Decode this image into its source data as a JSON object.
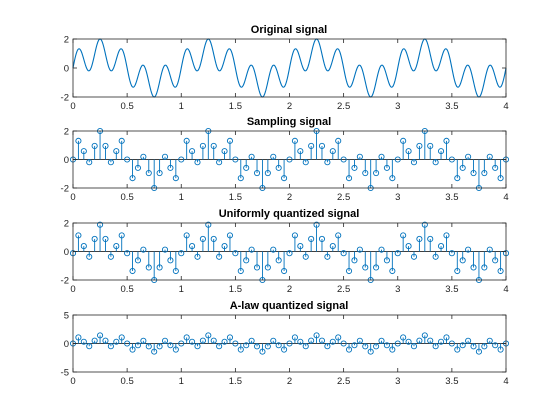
{
  "colors": {
    "line": "#0072BD",
    "axis": "#262626",
    "background": "#ffffff"
  },
  "chart_data": [
    {
      "type": "line",
      "title": "Original signal",
      "xlim": [
        0,
        4
      ],
      "ylim": [
        -2,
        2
      ],
      "xticks": [
        "0",
        "0.5",
        "1",
        "1.5",
        "2",
        "2.5",
        "3",
        "3.5",
        "4"
      ],
      "yticks": [
        "-2",
        "0",
        "2"
      ],
      "x_range": [
        0,
        4
      ],
      "signal": "y = sin(2*pi*t) + sin(10*pi*t) (approx. read from figure)",
      "grid": false
    },
    {
      "type": "stem",
      "title": "Sampling signal",
      "xlim": [
        0,
        4
      ],
      "ylim": [
        -2,
        2
      ],
      "xticks": [
        "0",
        "0.5",
        "1",
        "1.5",
        "2",
        "2.5",
        "3",
        "3.5",
        "4"
      ],
      "yticks": [
        "-2",
        "0",
        "2"
      ],
      "sample_interval": 0.05,
      "grid": false
    },
    {
      "type": "stem",
      "title": "Uniformly quantized signal",
      "xlim": [
        0,
        4
      ],
      "ylim": [
        -2,
        2
      ],
      "xticks": [
        "0",
        "0.5",
        "1",
        "1.5",
        "2",
        "2.5",
        "3",
        "3.5",
        "4"
      ],
      "yticks": [
        "-2",
        "0",
        "2"
      ],
      "sample_interval": 0.05,
      "grid": false
    },
    {
      "type": "stem",
      "title": "A-law quantized signal",
      "xlim": [
        0,
        4
      ],
      "ylim": [
        -5,
        5
      ],
      "xticks": [
        "0",
        "0.5",
        "1",
        "1.5",
        "2",
        "2.5",
        "3",
        "3.5",
        "4"
      ],
      "yticks": [
        "-5",
        "0",
        "5"
      ],
      "sample_interval": 0.05,
      "grid": false
    }
  ]
}
